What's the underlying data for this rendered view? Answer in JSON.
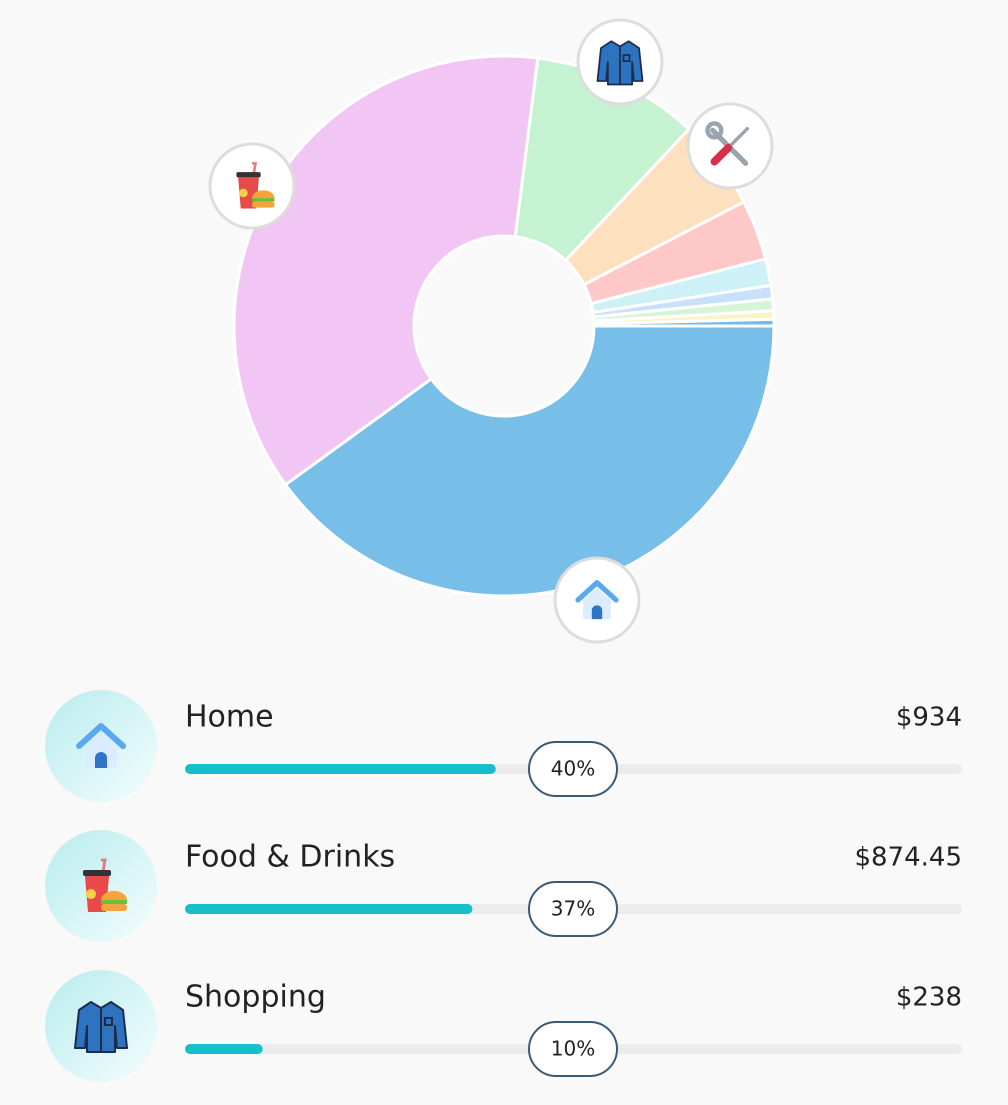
{
  "chart_data": {
    "type": "pie",
    "donut": true,
    "values": [
      40,
      37,
      10,
      5.4,
      3.6,
      1.6,
      0.8,
      0.7,
      0.5,
      0.4
    ],
    "colors": [
      "#77bee9",
      "#f2c6f4",
      "#c5f2d0",
      "#fde0bd",
      "#fec8c8",
      "#cdf1f6",
      "#c9e0fb",
      "#d6f5d6",
      "#fdf2c4",
      "#7ab8e8"
    ]
  },
  "list": {
    "items": [
      {
        "name": "Home",
        "amount": "$934",
        "percent": 40,
        "percent_label": "40%"
      },
      {
        "name": "Food & Drinks",
        "amount": "$874.45",
        "percent": 37,
        "percent_label": "37%"
      },
      {
        "name": "Shopping",
        "amount": "$238",
        "percent": 10,
        "percent_label": "10%"
      }
    ]
  }
}
